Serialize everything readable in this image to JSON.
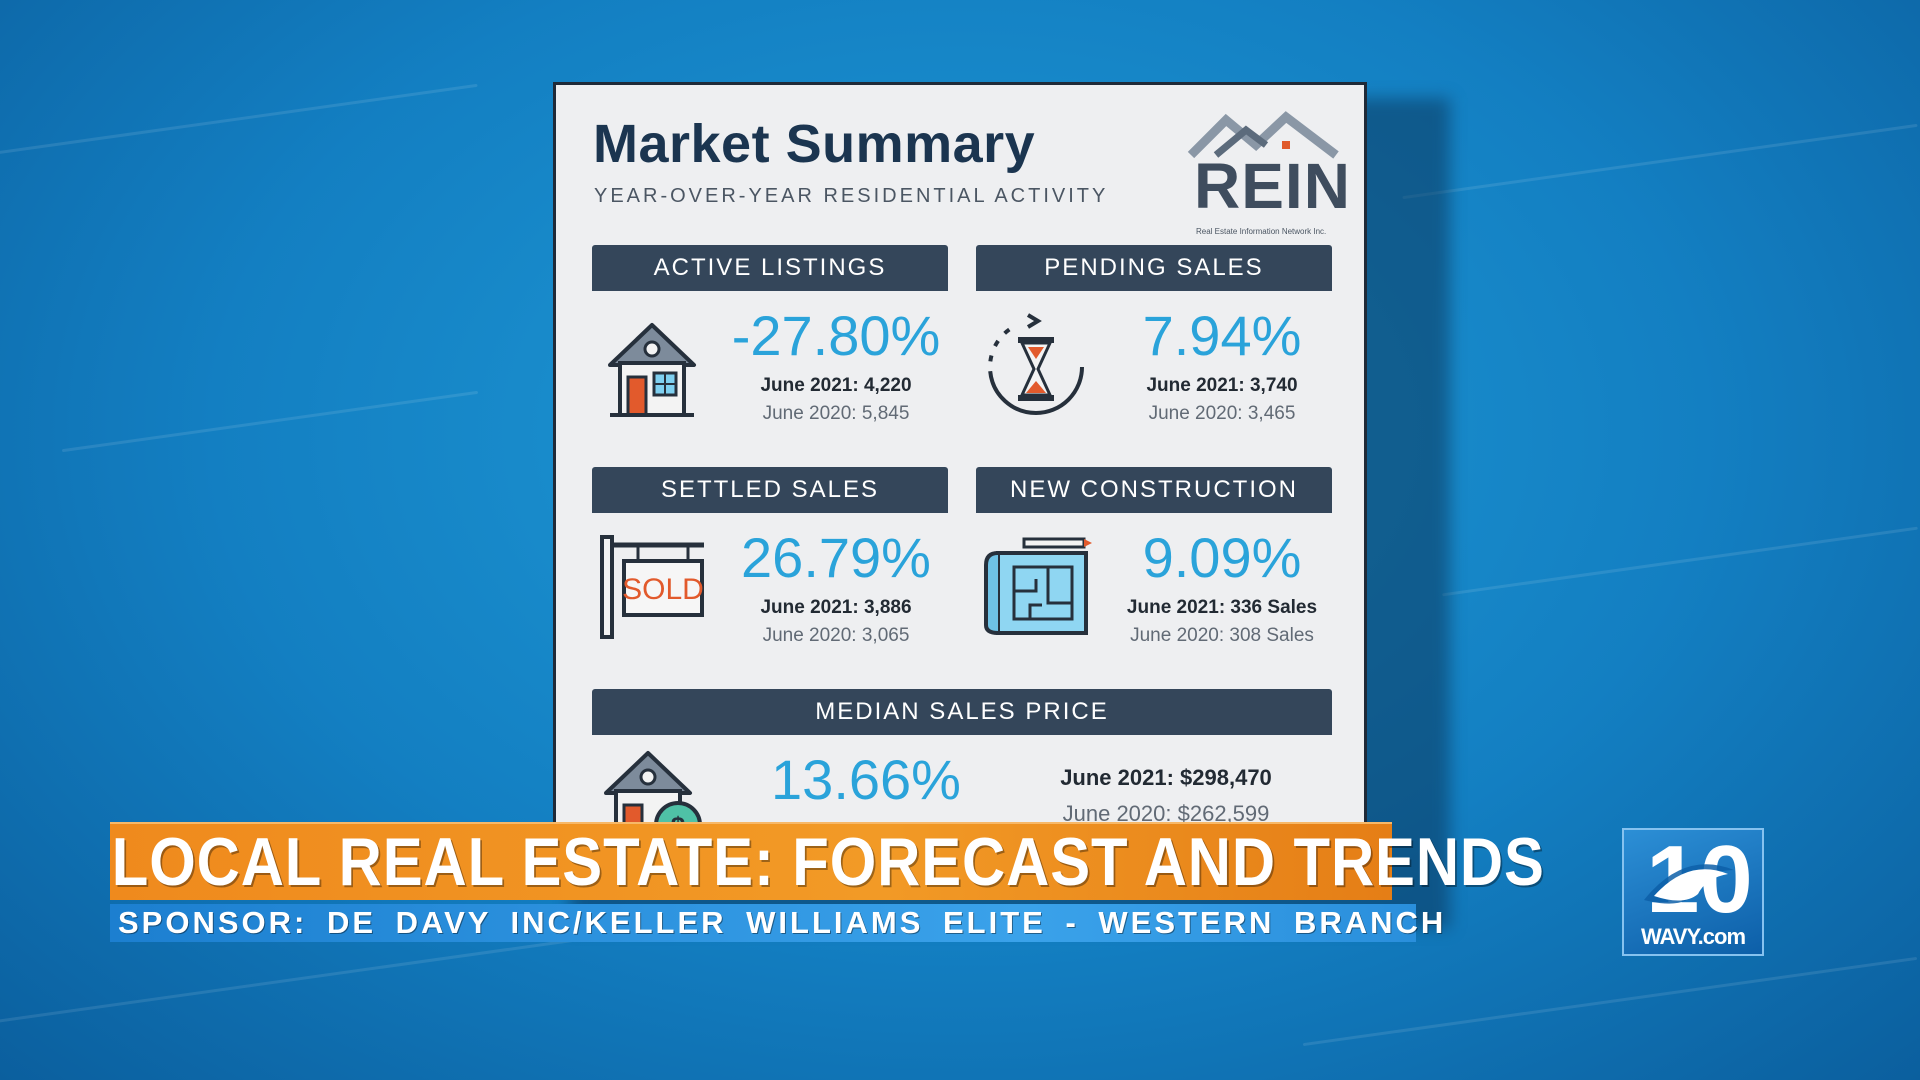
{
  "card": {
    "title": "Market Summary",
    "subtitle": "YEAR-OVER-YEAR RESIDENTIAL ACTIVITY",
    "logo": {
      "name": "REIN",
      "tagline": "Real Estate Information Network Inc."
    },
    "panels": [
      {
        "heading": "ACTIVE LISTINGS",
        "percent": "-27.80%",
        "current": "June 2021: 4,220",
        "previous": "June 2020: 5,845",
        "icon": "house-icon"
      },
      {
        "heading": "PENDING SALES",
        "percent": "7.94%",
        "current": "June 2021: 3,740",
        "previous": "June 2020: 3,465",
        "icon": "hourglass-icon"
      },
      {
        "heading": "SETTLED SALES",
        "percent": "26.79%",
        "current": "June 2021: 3,886",
        "previous": "June 2020: 3,065",
        "icon": "sold-sign-icon"
      },
      {
        "heading": "NEW CONSTRUCTION",
        "percent": "9.09%",
        "current": "June 2021: 336 Sales",
        "previous": "June 2020: 308 Sales",
        "icon": "blueprint-icon"
      },
      {
        "heading": "MEDIAN SALES PRICE",
        "percent": "13.66%",
        "current": "June 2021: $298,470",
        "previous": "June 2020: $262,599",
        "icon": "house-dollar-icon",
        "sold_label": "SOLD"
      }
    ]
  },
  "lower_third": {
    "headline": "LOCAL REAL ESTATE: FORECAST AND TRENDS",
    "sponsor": "SPONSOR: DE DAVY INC/KELLER WILLIAMS ELITE - WESTERN BRANCH"
  },
  "station": {
    "number": "10",
    "site": "WAVY.com"
  },
  "colors": {
    "accent": "#2aa3da",
    "panel_header": "#34465a",
    "headline": "#f29a26",
    "sponsor": "#2a8fdc"
  }
}
